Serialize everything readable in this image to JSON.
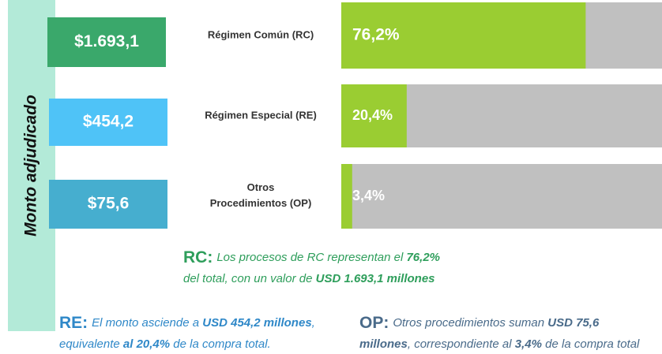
{
  "side_label": "Monto adjudicado",
  "chart_data": {
    "type": "bar",
    "categories": [
      "Régimen Común (RC)",
      "Régimen Especial (RE)",
      "Otros Procedimientos (OP)"
    ],
    "values": [
      76.2,
      20.4,
      3.4
    ],
    "value_labels": [
      "76,2%",
      "20,4%",
      "3,4%"
    ],
    "amounts": [
      "$1.693,1",
      "$454,2",
      "$75,6"
    ],
    "amount_colors": [
      "#3aa86b",
      "#4fc3f7",
      "#46aecf"
    ],
    "xlim": [
      0,
      100
    ],
    "color": "#9acd32"
  },
  "notes": [
    {
      "key": "RC:",
      "color": "#2e9e5b",
      "lines": [
        [
          {
            "text": "Los procesos de RC representan el ",
            "bold": false
          },
          {
            "text": "76,2%",
            "bold": true
          }
        ],
        [
          {
            "text": "del total, con un valor de ",
            "bold": false
          },
          {
            "text": "USD 1.693,1 millones",
            "bold": true
          }
        ]
      ]
    },
    {
      "key": "RE:",
      "color": "#2f88c8",
      "lines": [
        [
          {
            "text": "El monto asciende a ",
            "bold": false
          },
          {
            "text": "USD 454,2 millones",
            "bold": true
          },
          {
            "text": ",",
            "bold": false
          }
        ],
        [
          {
            "text": "equivalente ",
            "bold": false
          },
          {
            "text": "al 20,4%",
            "bold": true
          },
          {
            "text": " de la compra  total.",
            "bold": false
          }
        ]
      ]
    },
    {
      "key": "OP:",
      "color": "#4a6b8a",
      "lines": [
        [
          {
            "text": "Otros procedimientos suman ",
            "bold": false
          },
          {
            "text": "USD 75,6",
            "bold": true
          }
        ],
        [
          {
            "text": "millones",
            "bold": true
          },
          {
            "text": ", correspondiente al ",
            "bold": false
          },
          {
            "text": "3,4%",
            "bold": true
          },
          {
            "text": " de la compra total",
            "bold": false
          }
        ]
      ]
    }
  ]
}
